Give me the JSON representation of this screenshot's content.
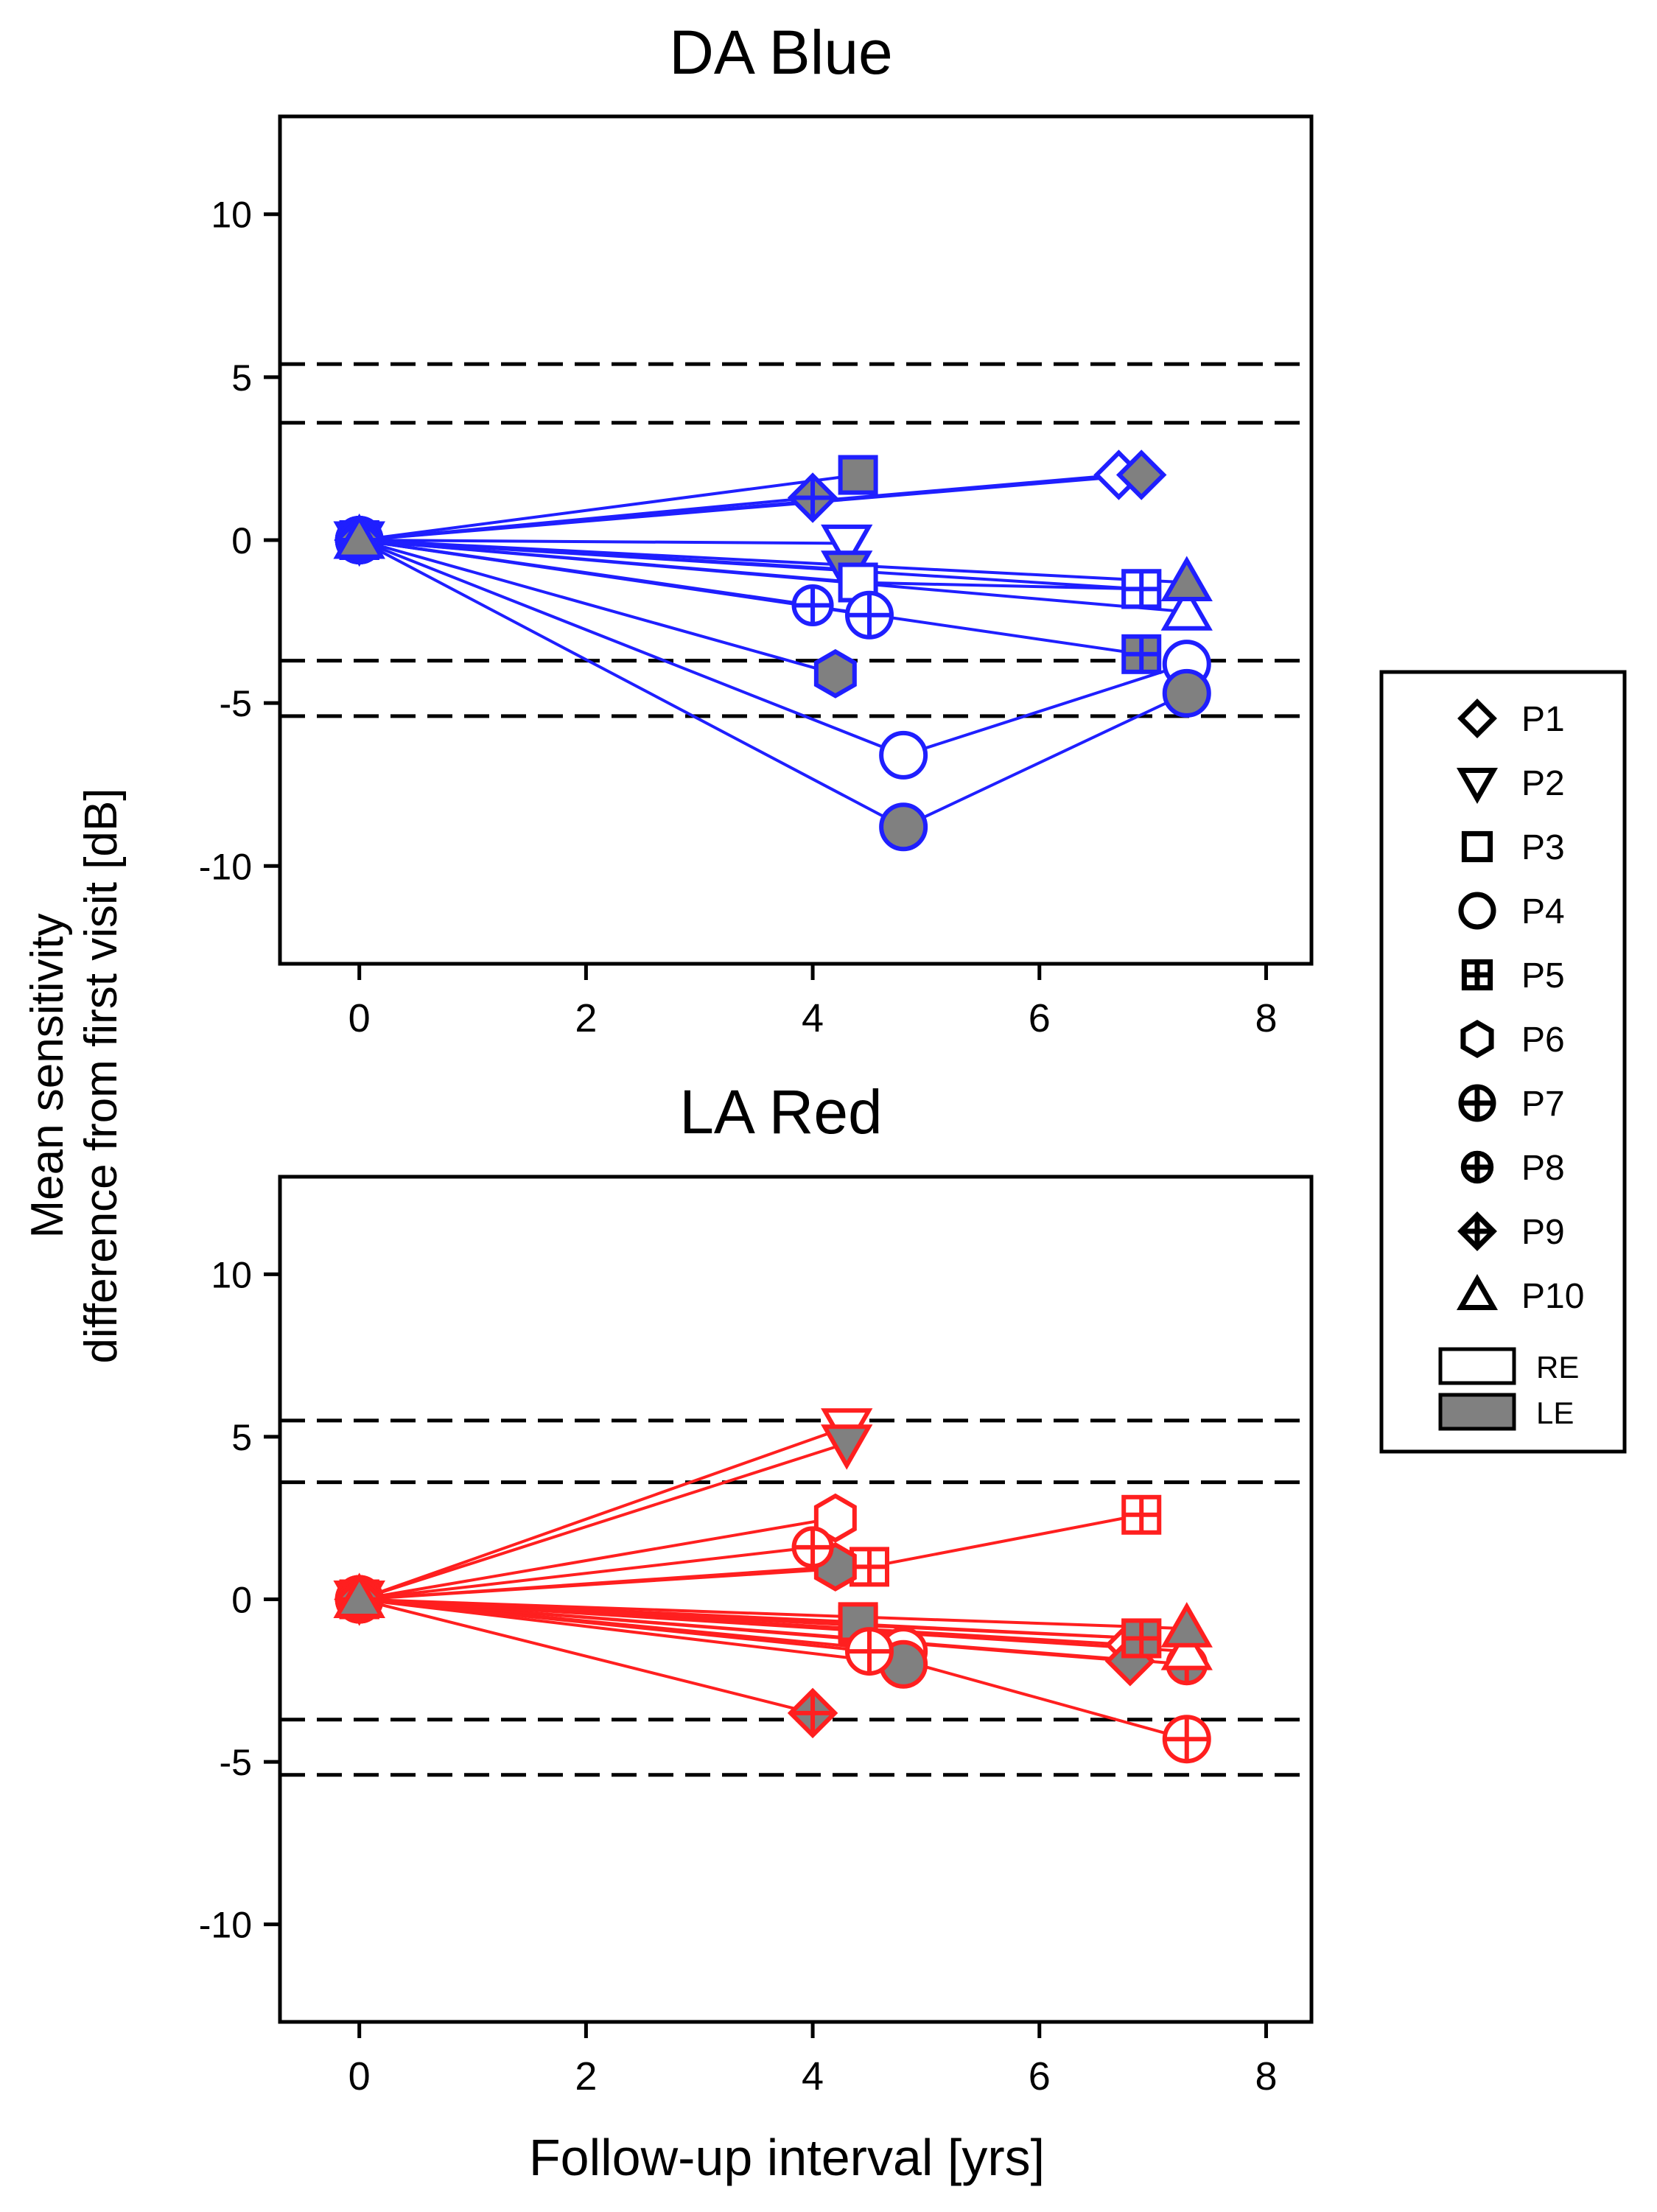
{
  "figure": {
    "ylabel_line1": "Mean sensitivity",
    "ylabel_line2": "difference from first visit [dB]",
    "xlabel": "Follow-up interval [yrs]"
  },
  "legend": {
    "participants": [
      {
        "label": "P1",
        "marker": "diamond"
      },
      {
        "label": "P2",
        "marker": "triangle-down"
      },
      {
        "label": "P3",
        "marker": "square"
      },
      {
        "label": "P4",
        "marker": "circle"
      },
      {
        "label": "P5",
        "marker": "square-plus"
      },
      {
        "label": "P6",
        "marker": "hexagon"
      },
      {
        "label": "P7",
        "marker": "circle-plus"
      },
      {
        "label": "P8",
        "marker": "circle-plus-small"
      },
      {
        "label": "P9",
        "marker": "diamond-plus"
      },
      {
        "label": "P10",
        "marker": "triangle-up"
      }
    ],
    "eyes": [
      {
        "label": "RE",
        "fill": "#ffffff"
      },
      {
        "label": "LE",
        "fill": "#808080"
      }
    ]
  },
  "chart_data": [
    {
      "type": "line",
      "title": "DA Blue",
      "color": "#1f1fff",
      "xlim": [
        -0.7,
        8.4
      ],
      "ylim": [
        -13,
        13
      ],
      "xticks": [
        0,
        2,
        4,
        6,
        8
      ],
      "yticks": [
        10,
        5,
        0,
        -5,
        -10
      ],
      "reference_lines": [
        5.4,
        3.6,
        -3.7,
        -5.4
      ],
      "series": [
        {
          "participant": "P1",
          "eye": "RE",
          "marker": "diamond",
          "x": [
            0,
            6.7
          ],
          "y": [
            0,
            2.0
          ]
        },
        {
          "participant": "P1",
          "eye": "LE",
          "marker": "diamond",
          "x": [
            0,
            6.9
          ],
          "y": [
            0,
            2.0
          ]
        },
        {
          "participant": "P2",
          "eye": "RE",
          "marker": "triangle-down",
          "x": [
            0,
            4.3
          ],
          "y": [
            0,
            -0.1
          ]
        },
        {
          "participant": "P2",
          "eye": "LE",
          "marker": "triangle-down",
          "x": [
            0,
            4.3
          ],
          "y": [
            0,
            -0.9
          ]
        },
        {
          "participant": "P3",
          "eye": "RE",
          "marker": "square",
          "x": [
            0,
            4.4,
            6.9
          ],
          "y": [
            0,
            -1.3,
            -1.5
          ]
        },
        {
          "participant": "P3",
          "eye": "LE",
          "marker": "square",
          "x": [
            0,
            4.4
          ],
          "y": [
            0,
            2.0
          ]
        },
        {
          "participant": "P4",
          "eye": "RE",
          "marker": "circle",
          "x": [
            0,
            4.8,
            7.3
          ],
          "y": [
            0,
            -6.6,
            -3.8
          ]
        },
        {
          "participant": "P4",
          "eye": "LE",
          "marker": "circle",
          "x": [
            0,
            4.8,
            7.3
          ],
          "y": [
            0,
            -8.8,
            -4.7
          ]
        },
        {
          "participant": "P5",
          "eye": "RE",
          "marker": "square-plus",
          "x": [
            0,
            6.9
          ],
          "y": [
            0,
            -1.5
          ]
        },
        {
          "participant": "P5",
          "eye": "LE",
          "marker": "square-plus",
          "x": [
            0,
            6.9
          ],
          "y": [
            0,
            -3.5
          ]
        },
        {
          "participant": "P6",
          "eye": "LE",
          "marker": "hexagon",
          "x": [
            0,
            4.2
          ],
          "y": [
            0,
            -4.1
          ]
        },
        {
          "participant": "P7",
          "eye": "RE",
          "marker": "circle-plus",
          "x": [
            0,
            4.5
          ],
          "y": [
            0,
            -2.3
          ]
        },
        {
          "participant": "P8",
          "eye": "RE",
          "marker": "circle-plus-small",
          "x": [
            0,
            4.0
          ],
          "y": [
            0,
            -2.0
          ]
        },
        {
          "participant": "P9",
          "eye": "LE",
          "marker": "diamond-plus",
          "x": [
            0,
            4.0
          ],
          "y": [
            0,
            1.3
          ]
        },
        {
          "participant": "P10",
          "eye": "RE",
          "marker": "triangle-up",
          "x": [
            0,
            7.3
          ],
          "y": [
            0,
            -2.2
          ]
        },
        {
          "participant": "P10",
          "eye": "LE",
          "marker": "triangle-up",
          "x": [
            0,
            7.3
          ],
          "y": [
            0,
            -1.3
          ]
        }
      ]
    },
    {
      "type": "line",
      "title": "LA Red",
      "color": "#ff1f1f",
      "xlim": [
        -0.7,
        8.4
      ],
      "ylim": [
        -13,
        13
      ],
      "xticks": [
        0,
        2,
        4,
        6,
        8
      ],
      "yticks": [
        10,
        5,
        0,
        -5,
        -10
      ],
      "reference_lines": [
        5.5,
        3.6,
        -3.7,
        -5.4
      ],
      "series": [
        {
          "participant": "P1",
          "eye": "RE",
          "marker": "diamond",
          "x": [
            0,
            6.8
          ],
          "y": [
            0,
            -1.4
          ]
        },
        {
          "participant": "P1",
          "eye": "LE",
          "marker": "diamond",
          "x": [
            0,
            6.8
          ],
          "y": [
            0,
            -1.9
          ]
        },
        {
          "participant": "P2",
          "eye": "RE",
          "marker": "triangle-down",
          "x": [
            0,
            4.3
          ],
          "y": [
            0,
            5.3
          ]
        },
        {
          "participant": "P2",
          "eye": "LE",
          "marker": "triangle-down",
          "x": [
            0,
            4.3
          ],
          "y": [
            0,
            4.8
          ]
        },
        {
          "participant": "P3",
          "eye": "RE",
          "marker": "square",
          "x": [
            0,
            4.4,
            6.9
          ],
          "y": [
            0,
            -0.8,
            -1.2
          ]
        },
        {
          "participant": "P3",
          "eye": "LE",
          "marker": "square",
          "x": [
            0,
            4.4
          ],
          "y": [
            0,
            -0.7
          ]
        },
        {
          "participant": "P4",
          "eye": "RE",
          "marker": "circle",
          "x": [
            0,
            4.8
          ],
          "y": [
            0,
            -1.6
          ]
        },
        {
          "participant": "P4",
          "eye": "LE",
          "marker": "circle",
          "x": [
            0,
            4.8
          ],
          "y": [
            0,
            -2.0
          ]
        },
        {
          "participant": "P5",
          "eye": "RE",
          "marker": "square-plus",
          "x": [
            0,
            4.5,
            6.9
          ],
          "y": [
            0,
            1.0,
            2.6
          ]
        },
        {
          "participant": "P5",
          "eye": "LE",
          "marker": "square-plus",
          "x": [
            0,
            6.9
          ],
          "y": [
            0,
            -1.2
          ]
        },
        {
          "participant": "P6",
          "eye": "RE",
          "marker": "hexagon",
          "x": [
            0,
            4.2
          ],
          "y": [
            0,
            2.5
          ]
        },
        {
          "participant": "P6",
          "eye": "LE",
          "marker": "hexagon",
          "x": [
            0,
            4.2
          ],
          "y": [
            0,
            1.0
          ]
        },
        {
          "participant": "P7",
          "eye": "RE",
          "marker": "circle-plus",
          "x": [
            0,
            4.5,
            7.3
          ],
          "y": [
            0,
            -1.6,
            -4.3
          ]
        },
        {
          "participant": "P8",
          "eye": "RE",
          "marker": "circle-plus-small",
          "x": [
            0,
            4.0
          ],
          "y": [
            0,
            1.6
          ]
        },
        {
          "participant": "P8",
          "eye": "LE",
          "marker": "circle-plus-small",
          "x": [
            0,
            7.3
          ],
          "y": [
            0,
            -2.0
          ]
        },
        {
          "participant": "P9",
          "eye": "LE",
          "marker": "diamond-plus",
          "x": [
            0,
            4.0
          ],
          "y": [
            0,
            -3.5
          ]
        },
        {
          "participant": "P10",
          "eye": "RE",
          "marker": "triangle-up",
          "x": [
            0,
            7.3
          ],
          "y": [
            0,
            -1.6
          ]
        },
        {
          "participant": "P10",
          "eye": "LE",
          "marker": "triangle-up",
          "x": [
            0,
            7.3
          ],
          "y": [
            0,
            -0.9
          ]
        }
      ]
    }
  ]
}
